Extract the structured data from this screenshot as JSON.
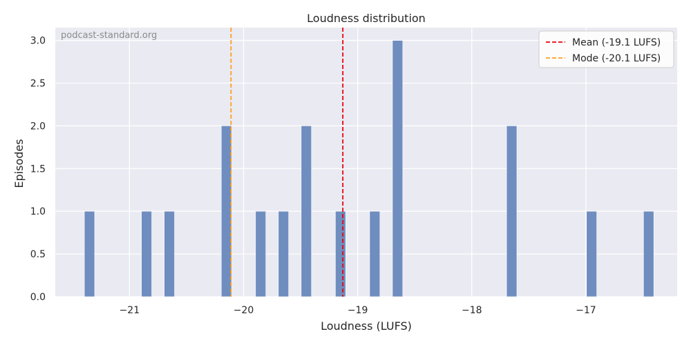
{
  "chart_data": {
    "type": "bar",
    "title": "Loudness distribution",
    "xlabel": "Loudness (LUFS)",
    "ylabel": "Episodes",
    "watermark": "podcast-standard.org",
    "xlim": [
      -21.65,
      -16.2
    ],
    "ylim": [
      0,
      3.15
    ],
    "bin_width": 0.09,
    "xticks": [
      -21,
      -20,
      -19,
      -18,
      -17
    ],
    "xtick_labels": [
      "−21",
      "−20",
      "−19",
      "−18",
      "−17"
    ],
    "yticks": [
      0,
      0.5,
      1,
      1.5,
      2,
      2.5,
      3
    ],
    "ytick_labels": [
      "0.0",
      "0.5",
      "1.0",
      "1.5",
      "2.0",
      "2.5",
      "3.0"
    ],
    "grid": true,
    "legend_position": "top-right",
    "colors": {
      "bars": "#6f8dbf",
      "plot_background": "#eaeaf2",
      "grid": "#ffffff",
      "mean_line": "#e8000b",
      "mode_line": "#ff9f1c"
    },
    "bars": [
      {
        "x": -21.35,
        "count": 1
      },
      {
        "x": -20.85,
        "count": 1
      },
      {
        "x": -20.65,
        "count": 1
      },
      {
        "x": -20.15,
        "count": 2
      },
      {
        "x": -19.85,
        "count": 1
      },
      {
        "x": -19.65,
        "count": 1
      },
      {
        "x": -19.45,
        "count": 2
      },
      {
        "x": -19.15,
        "count": 1
      },
      {
        "x": -18.85,
        "count": 1
      },
      {
        "x": -18.65,
        "count": 3
      },
      {
        "x": -17.65,
        "count": 2
      },
      {
        "x": -16.95,
        "count": 1
      },
      {
        "x": -16.45,
        "count": 1
      }
    ],
    "reference_lines": [
      {
        "name": "Mean (-19.1 LUFS)",
        "x": -19.13,
        "color": "#e8000b"
      },
      {
        "name": "Mode (-20.1 LUFS)",
        "x": -20.11,
        "color": "#ff9f1c"
      }
    ]
  }
}
